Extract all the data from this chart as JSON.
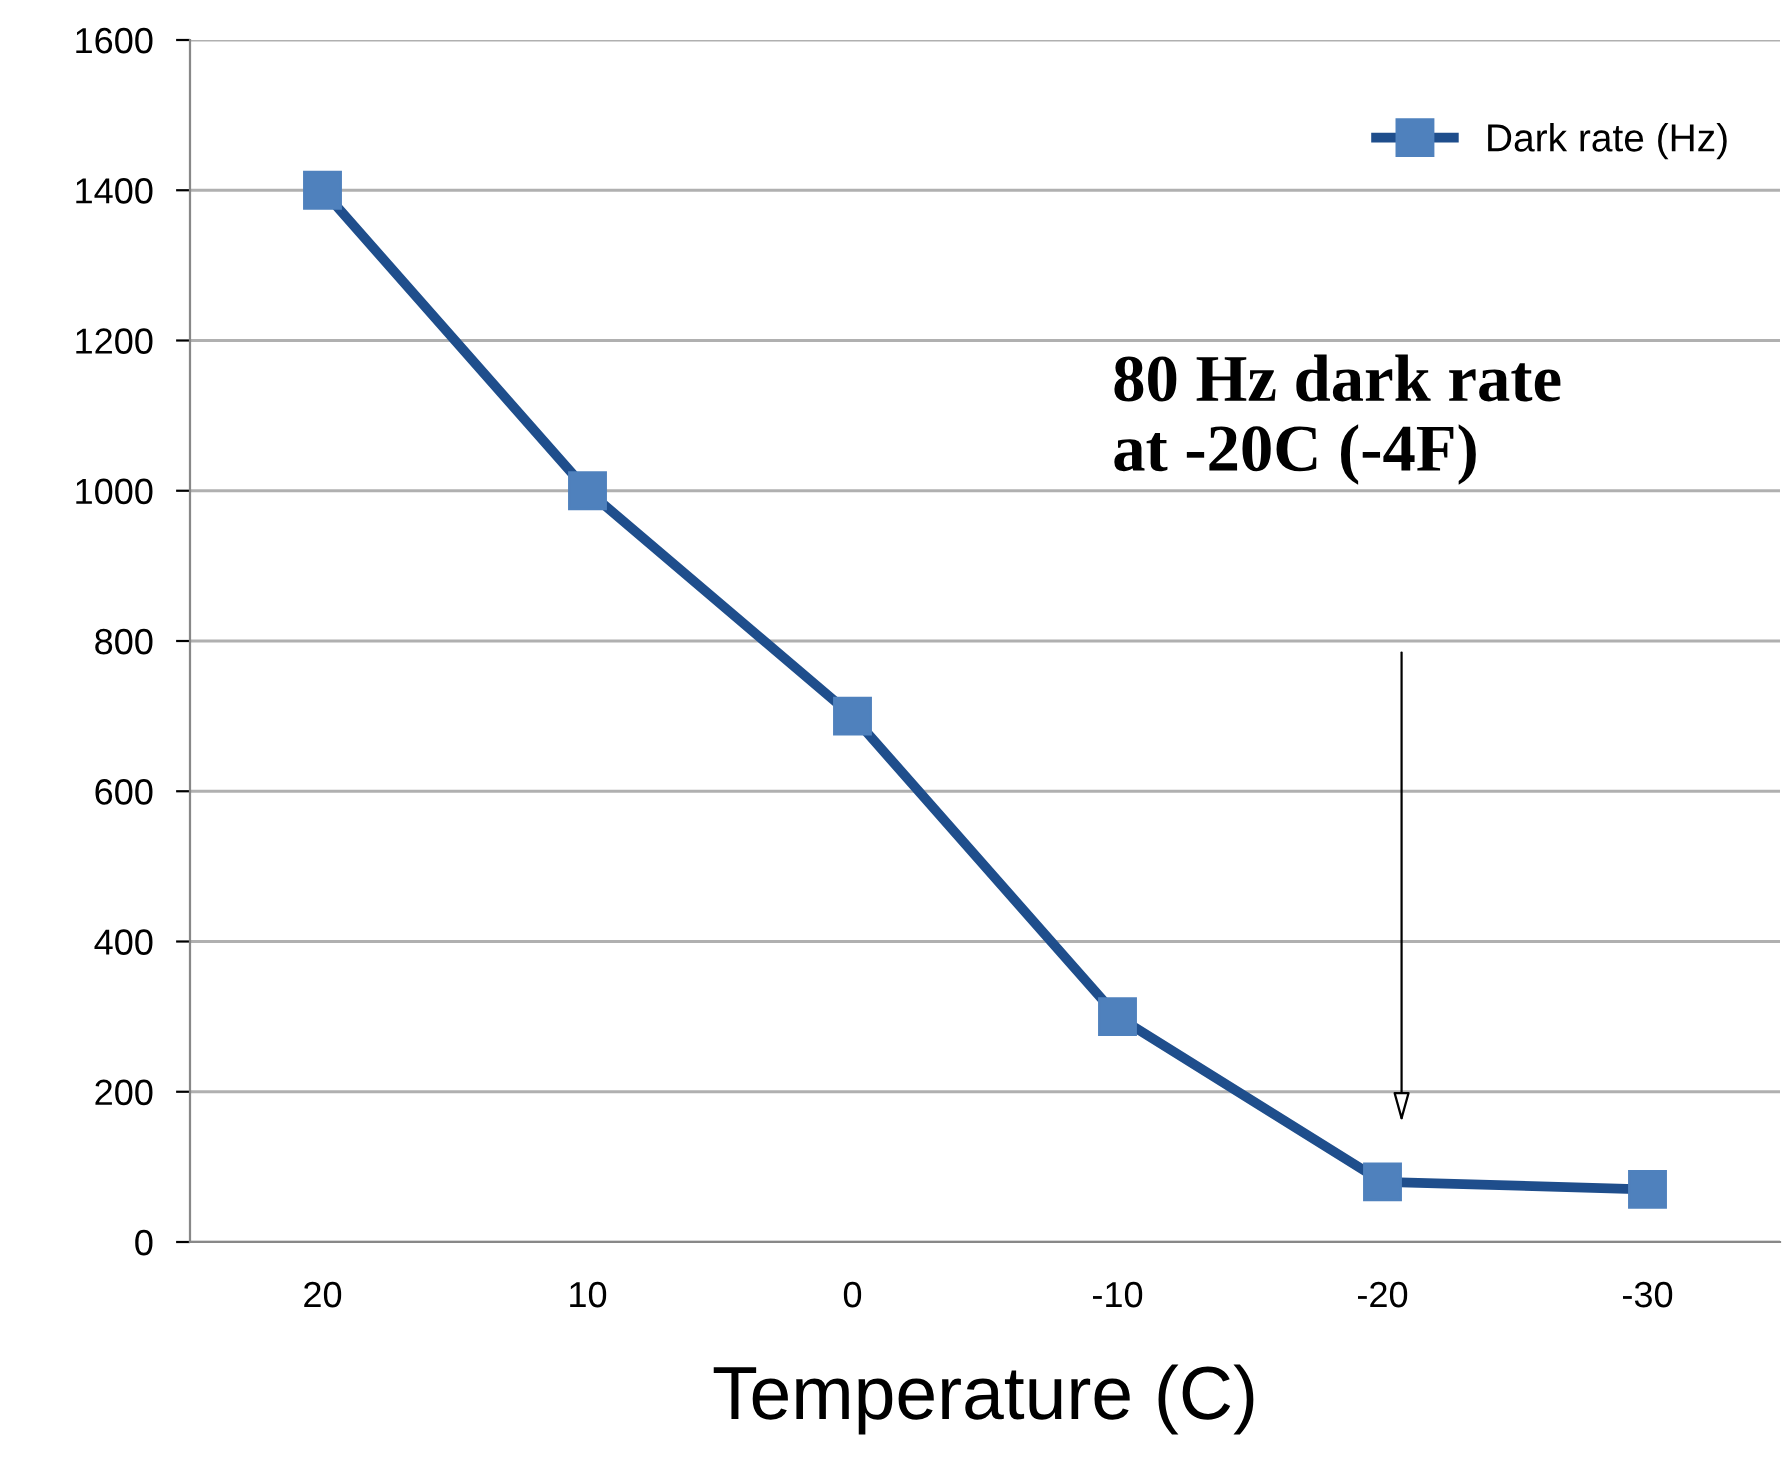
{
  "chart_data": {
    "type": "line",
    "categories": [
      "20",
      "10",
      "0",
      "-10",
      "-20",
      "-30"
    ],
    "series": [
      {
        "name": "Dark rate (Hz)",
        "color": "#1f4e8c",
        "values": [
          1400,
          1000,
          700,
          300,
          80,
          70
        ]
      }
    ],
    "xlabel": "Temperature (C)",
    "ylim": [
      0,
      1600
    ],
    "yticks": [
      0,
      200,
      400,
      600,
      800,
      1000,
      1200,
      1400,
      1600
    ],
    "grid": "y",
    "legend": "top right",
    "marker": "square",
    "line_style": "solid",
    "annotations": [
      "80 Hz dark rate\nat -20C (-4F)"
    ]
  }
}
